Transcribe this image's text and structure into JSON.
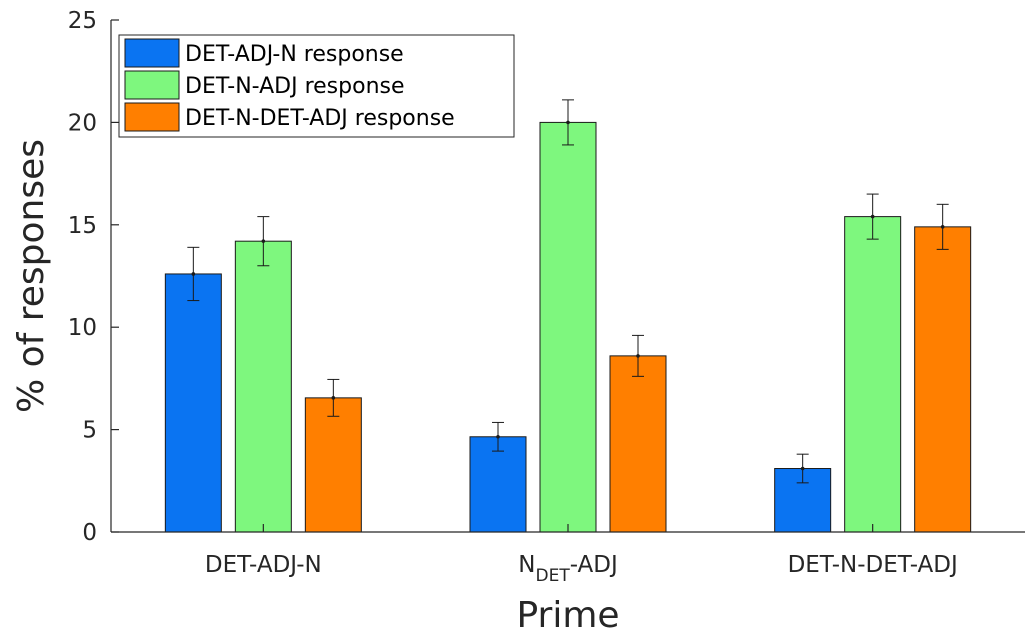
{
  "chart_data": {
    "type": "bar",
    "title": "",
    "xlabel": "Prime",
    "ylabel": "% of responses",
    "ylim": [
      0,
      25
    ],
    "yticks": [
      0,
      5,
      10,
      15,
      20,
      25
    ],
    "categories": [
      {
        "main": "DET-ADJ-N",
        "sub": "",
        "tail": ""
      },
      {
        "main": "N",
        "sub": "DET",
        "tail": "-ADJ"
      },
      {
        "main": "DET-N-DET-ADJ",
        "sub": "",
        "tail": ""
      }
    ],
    "series": [
      {
        "name": "DET-ADJ-N response",
        "color": "#0a74f2",
        "values": [
          12.6,
          4.65,
          3.1
        ],
        "errors": [
          1.3,
          0.7,
          0.7
        ]
      },
      {
        "name": "DET-N-ADJ response",
        "color": "#7ef77e",
        "values": [
          14.2,
          20.0,
          15.4
        ],
        "errors": [
          1.2,
          1.1,
          1.1
        ]
      },
      {
        "name": "DET-N-DET-ADJ response",
        "color": "#ff7f00",
        "values": [
          6.55,
          8.6,
          14.9
        ],
        "errors": [
          0.9,
          1.0,
          1.1
        ]
      }
    ],
    "legend": {
      "position": "top-left"
    },
    "grid": false
  }
}
